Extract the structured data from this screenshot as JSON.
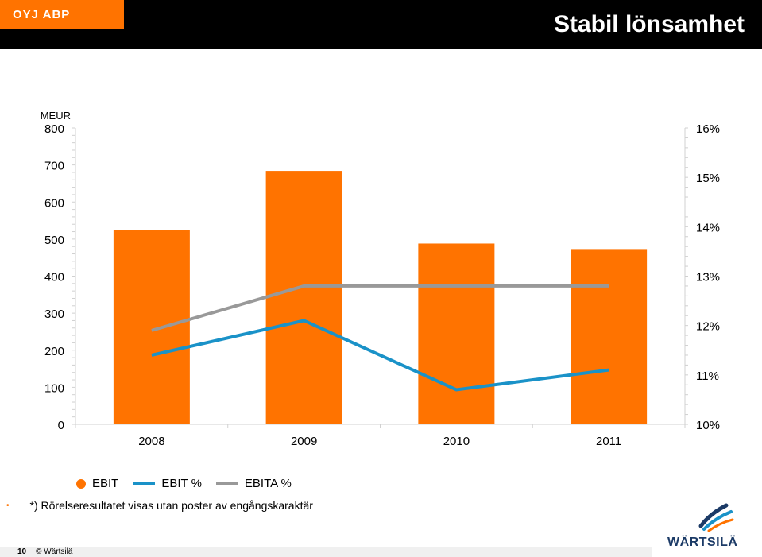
{
  "header": {
    "brand": "OYJ ABP",
    "title": "Stabil lönsamhet"
  },
  "chart_data": {
    "type": "bar",
    "unit_label": "MEUR",
    "categories": [
      "2008",
      "2009",
      "2010",
      "2011"
    ],
    "y_left": {
      "min": 0,
      "max": 800,
      "ticks": [
        0,
        100,
        200,
        300,
        400,
        500,
        600,
        700,
        800
      ]
    },
    "y_right": {
      "min": 10,
      "max": 16,
      "ticks": [
        "10%",
        "11%",
        "12%",
        "13%",
        "14%",
        "15%",
        "16%"
      ]
    },
    "series": [
      {
        "name": "EBIT",
        "type": "bar",
        "axis": "left",
        "color": "#ff7300",
        "values": [
          525,
          684,
          488,
          471
        ]
      },
      {
        "name": "EBIT %",
        "type": "line",
        "axis": "right",
        "color": "#1a92c8",
        "values": [
          11.4,
          12.1,
          10.7,
          11.1
        ]
      },
      {
        "name": "EBITA %",
        "type": "line",
        "axis": "right",
        "color": "#999999",
        "values": [
          11.9,
          12.8,
          12.8,
          12.8
        ]
      }
    ],
    "legend_position": "bottom-left",
    "grid": false
  },
  "legend": {
    "items": [
      {
        "label": "EBIT",
        "color": "#ff7300",
        "shape": "dot"
      },
      {
        "label": "EBIT %",
        "color": "#1a92c8",
        "shape": "line"
      },
      {
        "label": "EBITA %",
        "color": "#999999",
        "shape": "line"
      }
    ]
  },
  "footnote": "*) Rörelseresultatet visas utan poster av engångskaraktär",
  "footer": {
    "page": "10",
    "copyright": "© Wärtsilä"
  },
  "logo": {
    "text": "WÄRTSILÄ",
    "icon": "wartsila-logo-icon"
  }
}
